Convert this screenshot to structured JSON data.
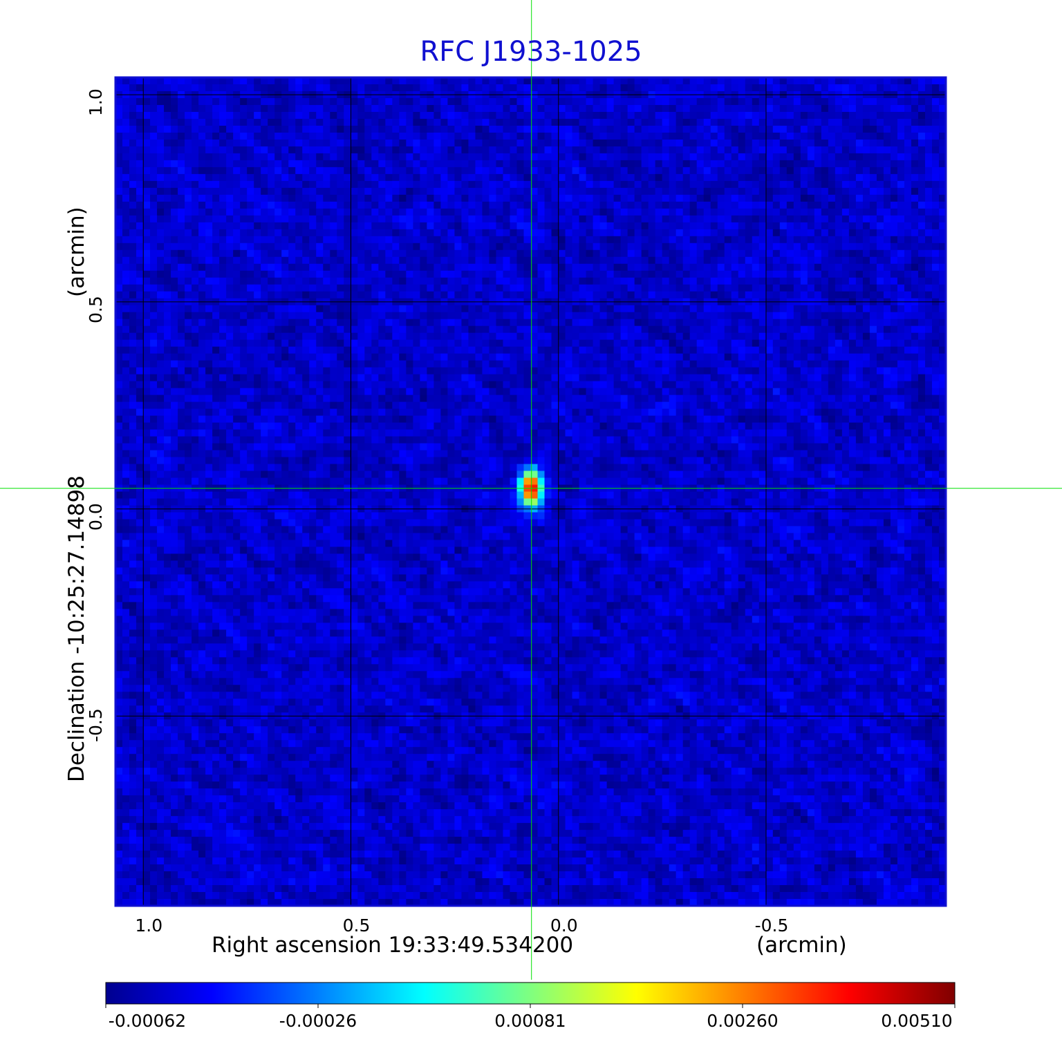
{
  "colors": {
    "title": "#1010d0",
    "frame": "#1010d0",
    "marker": "#00e000",
    "grid": "#000000"
  },
  "chart_data": {
    "type": "heatmap",
    "title": "RFC J1933-1025",
    "xlabel": "Right ascension  19:33:49.534200",
    "xunit": "(arcmin)",
    "ylabel": "Declination  -10:25:27.14898",
    "yunit": "(arcmin)",
    "x_ticks": [
      "1.0",
      "0.5",
      "0.0",
      "-0.5"
    ],
    "x_tick_values": [
      1.0,
      0.5,
      0.0,
      -0.5
    ],
    "y_ticks": [
      "1.0",
      "0.5",
      "0.0",
      "-0.5"
    ],
    "y_tick_values": [
      1.0,
      0.5,
      0.0,
      -0.5
    ],
    "xlim": [
      1.067,
      -0.933
    ],
    "ylim": [
      -0.958,
      1.042
    ],
    "grid": true,
    "colormap": "jet",
    "colorbar_ticks": [
      "-0.00062",
      "-0.00026",
      "0.00081",
      "0.00260",
      "0.00510"
    ],
    "colorbar_range": [
      -0.00062,
      0.0051
    ],
    "peak": {
      "x": 0.065,
      "y": 0.05,
      "value": 0.0051
    },
    "marker_crosshair": {
      "x": 0.065,
      "y": 0.05
    }
  }
}
